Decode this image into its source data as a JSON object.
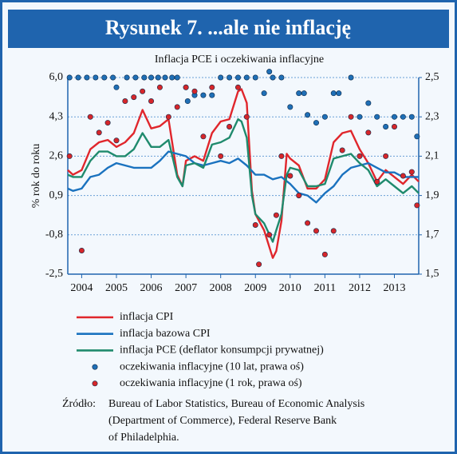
{
  "chart_data": {
    "type": "line",
    "title": "Rysunek 7. ...ale nie inflację",
    "subtitle": "Inflacja PCE i oczekiwania inflacyjne",
    "y_label": "% rok do roku",
    "xlim": [
      2003.6,
      2013.7
    ],
    "xticks": [
      2004,
      2005,
      2006,
      2007,
      2008,
      2009,
      2010,
      2011,
      2012,
      2013
    ],
    "ylim": [
      -2.5,
      6.0
    ],
    "yticks": [
      {
        "value": -2.5,
        "label": "-2,5"
      },
      {
        "value": -0.8,
        "label": "-0,8"
      },
      {
        "value": 0.9,
        "label": "0,9"
      },
      {
        "value": 2.6,
        "label": "2,6"
      },
      {
        "value": 4.3,
        "label": "4,3"
      },
      {
        "value": 6.0,
        "label": "6,0"
      }
    ],
    "y2lim": [
      1.5,
      2.5
    ],
    "y2ticks": [
      {
        "value": 1.5,
        "label": "1,5"
      },
      {
        "value": 1.7,
        "label": "1,7"
      },
      {
        "value": 1.9,
        "label": "1,9"
      },
      {
        "value": 2.1,
        "label": "2,1"
      },
      {
        "value": 2.3,
        "label": "2,3"
      },
      {
        "value": 2.5,
        "label": "2,5"
      }
    ],
    "grid": true,
    "series": [
      {
        "name": "inflacja CPI",
        "type": "line",
        "color": "#e0262c",
        "x": [
          2003.6,
          2003.75,
          2004.0,
          2004.25,
          2004.5,
          2004.75,
          2005.0,
          2005.25,
          2005.5,
          2005.75,
          2006.0,
          2006.25,
          2006.5,
          2006.75,
          2006.9,
          2007.0,
          2007.25,
          2007.5,
          2007.75,
          2008.0,
          2008.25,
          2008.5,
          2008.6,
          2008.75,
          2008.9,
          2009.0,
          2009.25,
          2009.5,
          2009.6,
          2009.75,
          2009.9,
          2010.0,
          2010.25,
          2010.5,
          2010.75,
          2011.0,
          2011.25,
          2011.5,
          2011.75,
          2012.0,
          2012.25,
          2012.5,
          2012.75,
          2013.0,
          2013.25,
          2013.5,
          2013.7
        ],
        "values": [
          2.0,
          1.8,
          2.0,
          2.9,
          3.2,
          3.3,
          3.0,
          3.2,
          3.6,
          4.6,
          3.8,
          3.9,
          4.2,
          1.8,
          1.3,
          2.4,
          2.6,
          2.4,
          3.6,
          4.1,
          4.2,
          5.4,
          5.5,
          4.9,
          1.1,
          0.1,
          -0.6,
          -1.8,
          -1.5,
          -0.2,
          2.7,
          2.5,
          2.2,
          1.2,
          1.2,
          1.6,
          3.2,
          3.6,
          3.7,
          2.9,
          2.3,
          1.5,
          2.0,
          1.7,
          1.4,
          1.8,
          1.5
        ]
      },
      {
        "name": "inflacja bazowa CPI",
        "type": "line",
        "color": "#1a72bf",
        "x": [
          2003.6,
          2003.75,
          2004.0,
          2004.25,
          2004.5,
          2004.75,
          2005.0,
          2005.25,
          2005.5,
          2005.75,
          2006.0,
          2006.25,
          2006.5,
          2006.75,
          2007.0,
          2007.25,
          2007.5,
          2007.75,
          2008.0,
          2008.25,
          2008.5,
          2008.75,
          2009.0,
          2009.25,
          2009.5,
          2009.75,
          2010.0,
          2010.25,
          2010.5,
          2010.75,
          2011.0,
          2011.25,
          2011.5,
          2011.75,
          2012.0,
          2012.25,
          2012.5,
          2012.75,
          2013.0,
          2013.25,
          2013.5,
          2013.7
        ],
        "values": [
          1.2,
          1.1,
          1.2,
          1.7,
          1.8,
          2.1,
          2.3,
          2.2,
          2.1,
          2.1,
          2.1,
          2.4,
          2.8,
          2.7,
          2.6,
          2.3,
          2.2,
          2.3,
          2.4,
          2.3,
          2.5,
          2.2,
          1.8,
          1.8,
          1.6,
          1.7,
          1.4,
          1.0,
          0.9,
          0.6,
          1.0,
          1.3,
          1.8,
          2.1,
          2.2,
          2.3,
          2.1,
          1.9,
          1.9,
          1.7,
          1.7,
          1.7
        ]
      },
      {
        "name": "inflacja PCE (deflator konsumpcji prywatnej)",
        "type": "line",
        "color": "#1f8a6d",
        "x": [
          2003.6,
          2003.75,
          2004.0,
          2004.25,
          2004.5,
          2004.75,
          2005.0,
          2005.25,
          2005.5,
          2005.75,
          2006.0,
          2006.25,
          2006.5,
          2006.75,
          2006.9,
          2007.0,
          2007.25,
          2007.5,
          2007.75,
          2008.0,
          2008.25,
          2008.5,
          2008.6,
          2008.75,
          2008.9,
          2009.0,
          2009.25,
          2009.5,
          2009.6,
          2009.75,
          2009.9,
          2010.0,
          2010.25,
          2010.5,
          2010.75,
          2011.0,
          2011.25,
          2011.5,
          2011.75,
          2012.0,
          2012.25,
          2012.5,
          2012.75,
          2013.0,
          2013.25,
          2013.5,
          2013.7
        ],
        "values": [
          1.8,
          1.7,
          1.7,
          2.4,
          2.8,
          2.8,
          2.6,
          2.6,
          2.9,
          3.6,
          3.0,
          3.0,
          3.3,
          1.7,
          1.3,
          2.2,
          2.3,
          2.1,
          3.1,
          3.2,
          3.4,
          4.2,
          4.1,
          3.4,
          0.9,
          0.1,
          -0.3,
          -1.1,
          -0.6,
          0.1,
          1.8,
          2.1,
          2.0,
          1.3,
          1.3,
          1.4,
          2.5,
          2.6,
          2.7,
          2.3,
          2.0,
          1.3,
          1.6,
          1.3,
          1.0,
          1.3,
          1.0
        ]
      },
      {
        "name": "oczekiwania inflacyjne  (10 lat, prawa oś)",
        "type": "scatter",
        "axis": "y2",
        "color": "#1f6fb6",
        "x": [
          2003.65,
          2003.9,
          2004.15,
          2004.4,
          2004.65,
          2004.9,
          2005.0,
          2005.3,
          2005.55,
          2005.8,
          2006.0,
          2006.2,
          2006.4,
          2006.6,
          2006.75,
          2007.0,
          2007.05,
          2007.25,
          2007.5,
          2007.75,
          2008.0,
          2008.25,
          2008.5,
          2008.75,
          2009.0,
          2009.25,
          2009.4,
          2009.5,
          2009.75,
          2010.0,
          2010.25,
          2010.4,
          2010.5,
          2010.75,
          2011.0,
          2011.25,
          2011.4,
          2011.75,
          2012.0,
          2012.25,
          2012.5,
          2012.75,
          2013.0,
          2013.25,
          2013.5,
          2013.65
        ],
        "values": [
          2.5,
          2.5,
          2.5,
          2.5,
          2.5,
          2.5,
          2.45,
          2.5,
          2.5,
          2.5,
          2.5,
          2.5,
          2.5,
          2.5,
          2.5,
          2.45,
          2.38,
          2.41,
          2.41,
          2.41,
          2.5,
          2.5,
          2.5,
          2.5,
          2.5,
          2.42,
          2.53,
          2.5,
          2.5,
          2.35,
          2.42,
          2.42,
          2.31,
          2.27,
          2.3,
          2.42,
          2.42,
          2.5,
          2.3,
          2.37,
          2.3,
          2.25,
          2.3,
          2.3,
          2.3,
          2.2
        ]
      },
      {
        "name": "oczekiwania inflacyjne (1 rok, prawa oś)",
        "type": "scatter",
        "axis": "y2",
        "color": "#d6262a",
        "x": [
          2003.65,
          2004.0,
          2004.25,
          2004.5,
          2004.75,
          2005.0,
          2005.25,
          2005.5,
          2005.75,
          2006.0,
          2006.25,
          2006.5,
          2006.75,
          2007.0,
          2007.25,
          2007.5,
          2007.75,
          2008.0,
          2008.25,
          2008.5,
          2008.75,
          2009.0,
          2009.1,
          2009.4,
          2009.6,
          2009.75,
          2010.0,
          2010.25,
          2010.5,
          2010.75,
          2011.0,
          2011.25,
          2011.5,
          2011.75,
          2012.0,
          2012.25,
          2012.5,
          2012.75,
          2013.0,
          2013.25,
          2013.5,
          2013.65
        ],
        "values": [
          2.1,
          1.62,
          2.3,
          2.22,
          2.27,
          2.18,
          2.38,
          2.4,
          2.43,
          2.38,
          2.45,
          2.3,
          2.35,
          2.45,
          2.43,
          2.2,
          2.45,
          2.1,
          2.25,
          2.45,
          2.3,
          1.75,
          1.55,
          1.7,
          1.8,
          2.1,
          2.0,
          1.9,
          1.76,
          1.72,
          1.6,
          1.72,
          2.13,
          2.3,
          2.1,
          2.22,
          1.97,
          2.1,
          2.25,
          2.0,
          2.02,
          1.85
        ]
      }
    ],
    "source_label": "Źródło:",
    "source_lines": [
      "Bureau of Labor Statistics, Bureau of Economic Analysis",
      "(Department of Commerce), Federal Reserve Bank",
      "of Philadelphia."
    ]
  }
}
